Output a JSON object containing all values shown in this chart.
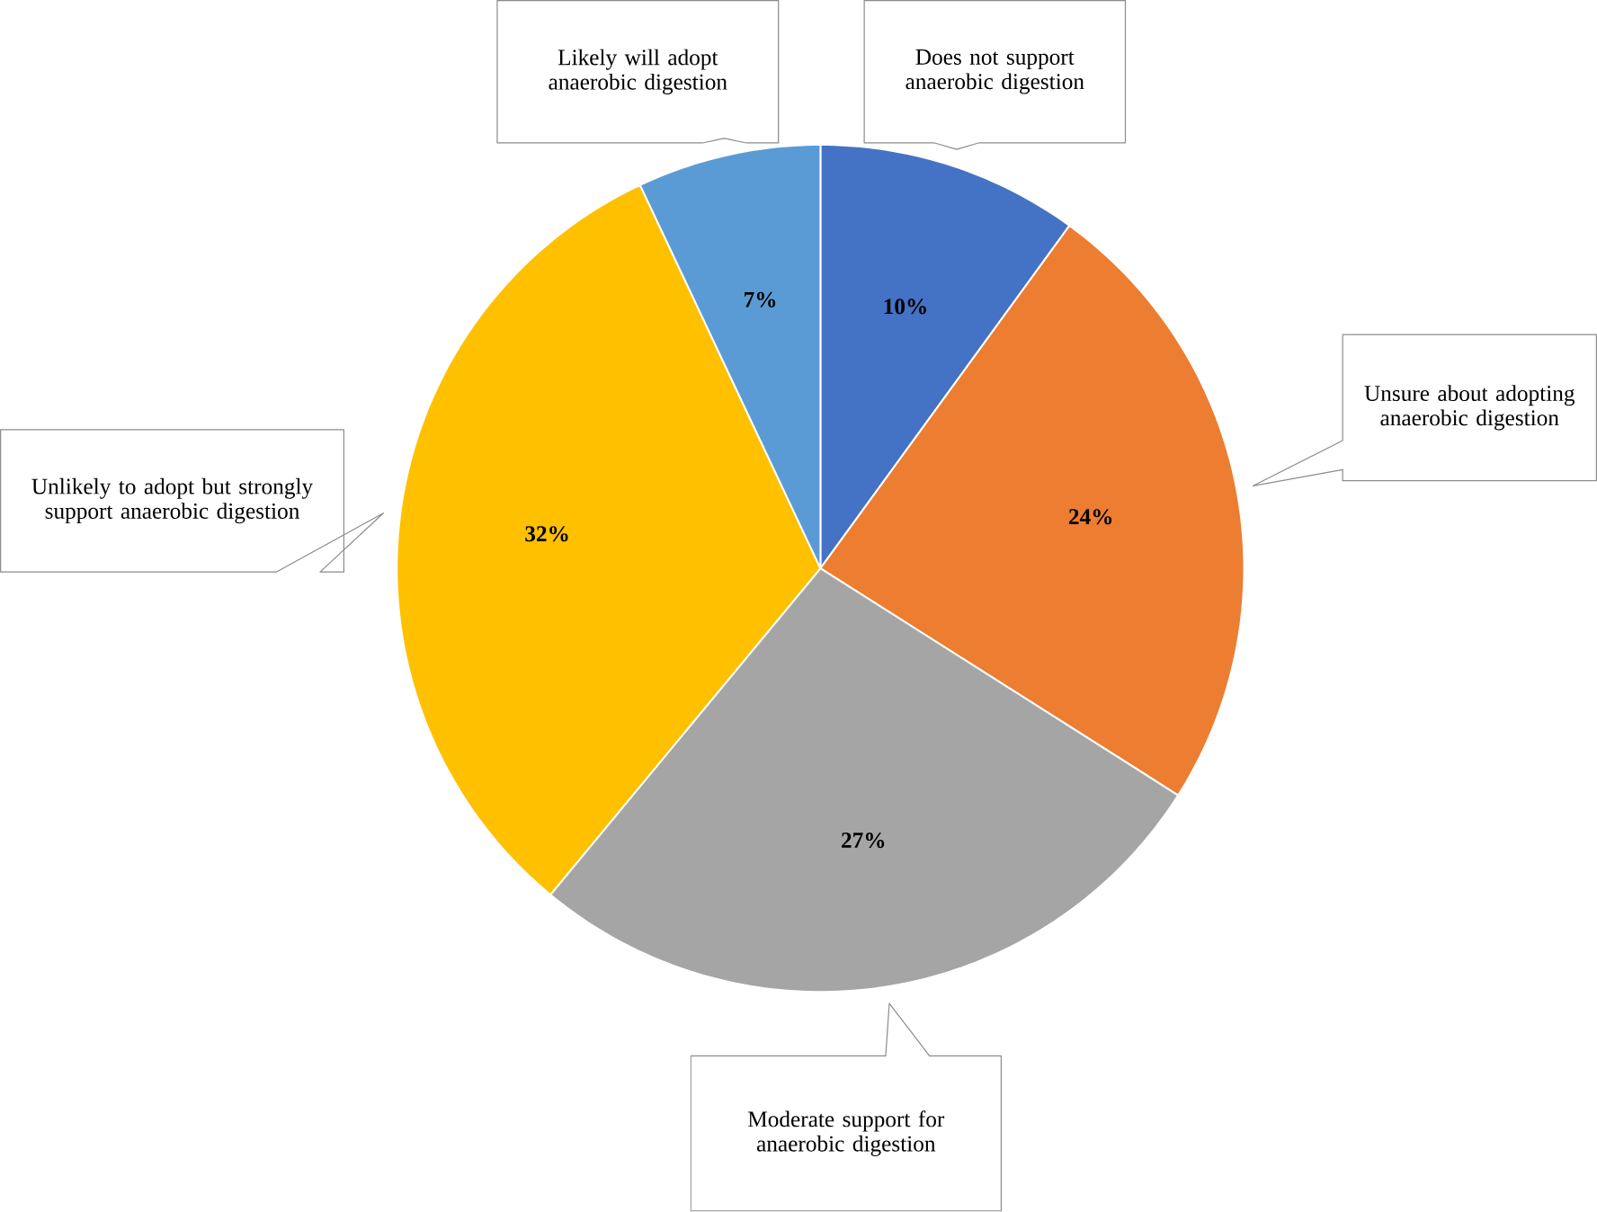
{
  "chart_data": {
    "type": "pie",
    "categories": [
      "Does not support anaerobic digestion",
      "Unsure about adopting anaerobic digestion",
      "Moderate support for anaerobic digestion",
      "Unlikely to adopt but strongly support anaerobic digestion",
      "Likely will adopt anaerobic digestion"
    ],
    "values": [
      10,
      24,
      27,
      32,
      7
    ],
    "value_labels": [
      "10%",
      "24%",
      "27%",
      "32%",
      "7%"
    ],
    "colors": [
      "#4472c4",
      "#ed7d31",
      "#a5a5a5",
      "#ffc000",
      "#5b9bd5"
    ]
  }
}
